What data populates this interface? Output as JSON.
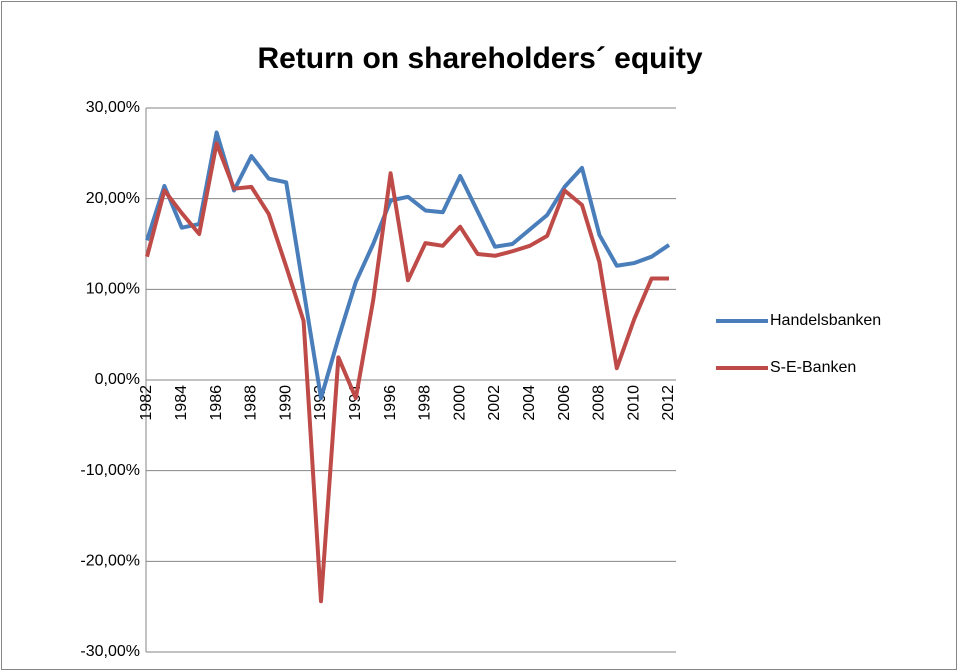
{
  "chart_data": {
    "type": "line",
    "title": "Return on shareholders´ equity",
    "categories": [
      "1982",
      null,
      "1984",
      null,
      "1986",
      null,
      "1988",
      null,
      "1990",
      null,
      "1992",
      null,
      "1994",
      null,
      "1996",
      null,
      "1998",
      null,
      "2000",
      null,
      "2002",
      null,
      "2004",
      null,
      "2006",
      null,
      "2008",
      null,
      "2010",
      null,
      "2012"
    ],
    "series": [
      {
        "name": "Handelsbanken",
        "color": "#4a7ebb",
        "values": [
          15.4,
          21.4,
          16.8,
          17.2,
          27.3,
          20.9,
          24.7,
          22.2,
          21.8,
          9.9,
          -2.0,
          4.6,
          10.8,
          15.0,
          19.8,
          20.2,
          18.7,
          18.5,
          22.5,
          18.6,
          14.7,
          15.0,
          16.6,
          18.2,
          21.3,
          23.4,
          16.0,
          12.6,
          12.9,
          13.6,
          14.9
        ]
      },
      {
        "name": "S-E-Banken",
        "color": "#be4b48",
        "values": [
          13.6,
          20.9,
          18.4,
          16.1,
          26.1,
          21.1,
          21.3,
          18.3,
          12.5,
          6.5,
          -24.4,
          2.5,
          -2.0,
          8.8,
          22.8,
          11.0,
          15.1,
          14.8,
          16.9,
          13.9,
          13.7,
          14.2,
          14.8,
          15.9,
          20.9,
          19.3,
          13.0,
          1.3,
          6.7,
          11.2,
          11.2
        ]
      }
    ],
    "ylim": [
      -30,
      30
    ],
    "yticks": [
      {
        "value": -30,
        "label": "-30,00%"
      },
      {
        "value": -20,
        "label": "-20,00%"
      },
      {
        "value": -10,
        "label": "-10,00%"
      },
      {
        "value": 0,
        "label": "0,00%"
      },
      {
        "value": 10,
        "label": "10,00%"
      },
      {
        "value": 20,
        "label": "20,00%"
      },
      {
        "value": 30,
        "label": "30,00%"
      }
    ],
    "grid": true,
    "legend": "right"
  }
}
